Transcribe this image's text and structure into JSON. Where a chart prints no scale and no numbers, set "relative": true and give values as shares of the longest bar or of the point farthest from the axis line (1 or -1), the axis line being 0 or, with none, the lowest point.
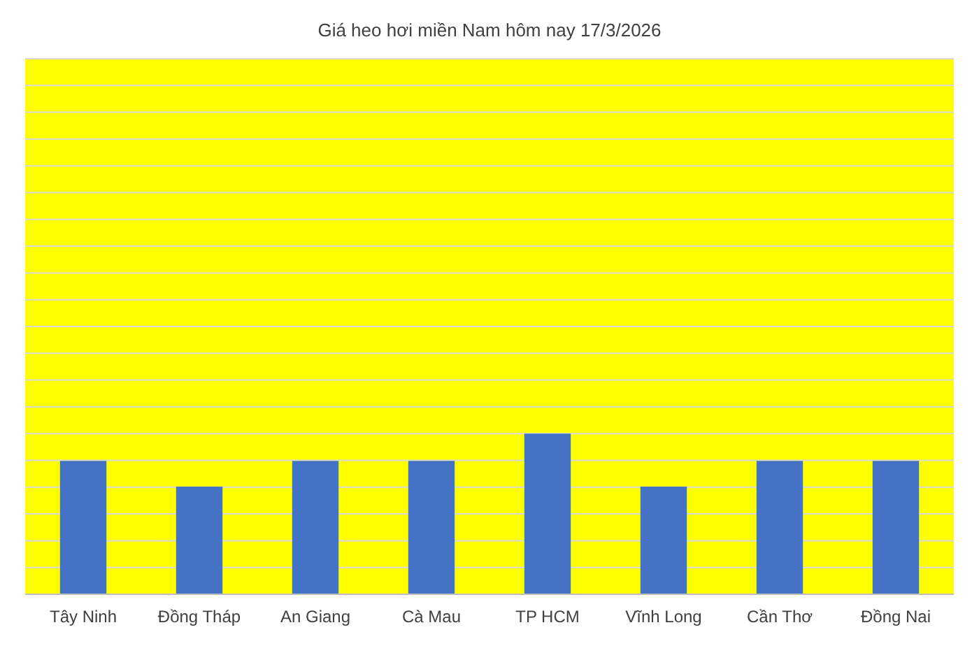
{
  "chart_data": {
    "type": "bar",
    "title": "Giá heo hơi miền Nam hôm nay 17/3/2026",
    "categories": [
      "Tây Ninh",
      "Đồng Tháp",
      "An Giang",
      "Cà Mau",
      "TP HCM",
      "Vĩnh Long",
      "Cần Thơ",
      "Đồng Nai"
    ],
    "values": [
      0.83,
      0.67,
      0.83,
      0.83,
      1,
      0.67,
      0.83,
      0.83
    ],
    "color": "#4472c4",
    "relative": true,
    "grid": true
  }
}
